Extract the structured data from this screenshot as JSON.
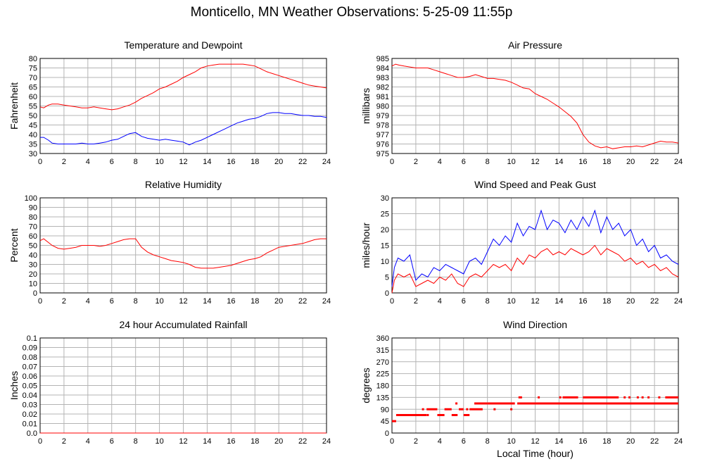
{
  "page": {
    "title": "Monticello, MN Weather Observations: 5-25-09 11:55p"
  },
  "chart_data": [
    {
      "type": "line",
      "title": "Temperature and Dewpoint",
      "ylabel": "Fahrenheit",
      "xlabel": "",
      "xlim": [
        0,
        24
      ],
      "ylim": [
        30,
        80
      ],
      "xticks": [
        0,
        2,
        4,
        6,
        8,
        10,
        12,
        14,
        16,
        18,
        20,
        22,
        24
      ],
      "yticks": [
        30,
        35,
        40,
        45,
        50,
        55,
        60,
        65,
        70,
        75,
        80
      ],
      "grid": true,
      "colors": [
        "#ff0000",
        "#0000ff"
      ],
      "series": [
        {
          "x": [
            0,
            0.3,
            0.7,
            1,
            1.5,
            2,
            2.5,
            3,
            3.5,
            4,
            4.5,
            5,
            5.5,
            6,
            6.5,
            7,
            7.5,
            8,
            8.5,
            9,
            9.5,
            10,
            10.5,
            11,
            11.5,
            12,
            12.5,
            13,
            13.5,
            14,
            14.5,
            15,
            15.5,
            16,
            16.5,
            17,
            17.5,
            18,
            18.5,
            19,
            19.5,
            20,
            20.5,
            21,
            21.5,
            22,
            22.5,
            23,
            23.5,
            24
          ],
          "values": [
            54.5,
            54,
            55.5,
            56,
            56,
            55.5,
            55,
            54.5,
            54,
            54,
            54.5,
            54,
            53.5,
            53,
            53.5,
            54.5,
            55.5,
            57,
            59,
            60.5,
            62,
            64,
            65,
            66.5,
            68,
            70,
            71.5,
            73,
            75,
            76,
            76.5,
            77,
            77,
            77,
            77,
            77,
            76.5,
            76,
            74.5,
            73,
            72,
            71,
            70,
            69,
            68,
            67,
            66,
            65.5,
            65,
            64.5
          ]
        },
        {
          "x": [
            0,
            0.3,
            0.7,
            1,
            1.5,
            2,
            2.5,
            3,
            3.5,
            4,
            4.5,
            5,
            5.5,
            6,
            6.5,
            7,
            7.5,
            8,
            8.5,
            9,
            9.5,
            10,
            10.5,
            11,
            11.5,
            12,
            12.5,
            13,
            13.5,
            14,
            14.5,
            15,
            15.5,
            16,
            16.5,
            17,
            17.5,
            18,
            18.5,
            19,
            19.5,
            20,
            20.5,
            21,
            21.5,
            22,
            22.5,
            23,
            23.5,
            24
          ],
          "values": [
            38.5,
            38.5,
            37,
            35.5,
            35,
            35,
            35,
            35,
            35.5,
            35,
            35,
            35.5,
            36,
            37,
            37.5,
            39,
            40.5,
            41,
            39,
            38,
            37.5,
            37,
            37.5,
            37,
            36.5,
            36,
            34.5,
            36,
            37,
            38.5,
            40,
            41.5,
            43,
            44.5,
            46,
            47,
            48,
            48.5,
            49.5,
            51,
            51.5,
            51.5,
            51,
            51,
            50.5,
            50,
            50,
            49.5,
            49.5,
            49
          ]
        }
      ]
    },
    {
      "type": "line",
      "title": "Air Pressure",
      "ylabel": "millibars",
      "xlabel": "",
      "xlim": [
        0,
        24
      ],
      "ylim": [
        975,
        985
      ],
      "xticks": [
        0,
        2,
        4,
        6,
        8,
        10,
        12,
        14,
        16,
        18,
        20,
        22,
        24
      ],
      "yticks": [
        975,
        976,
        977,
        978,
        979,
        980,
        981,
        982,
        983,
        984,
        985
      ],
      "grid": true,
      "colors": [
        "#ff0000"
      ],
      "series": [
        {
          "x": [
            0,
            0.3,
            0.6,
            1,
            1.5,
            2,
            2.5,
            3,
            3.5,
            4,
            4.5,
            5,
            5.5,
            6,
            6.5,
            7,
            7.5,
            8,
            8.5,
            9,
            9.5,
            10,
            10.5,
            11,
            11.5,
            12,
            12.5,
            13,
            13.5,
            14,
            14.5,
            15,
            15.5,
            16,
            16.5,
            17,
            17.5,
            18,
            18.5,
            19,
            19.5,
            20,
            20.5,
            21,
            21.5,
            22,
            22.5,
            23,
            23.5,
            24
          ],
          "values": [
            984.2,
            984.4,
            984.3,
            984.2,
            984.1,
            984.0,
            984.0,
            984.0,
            983.8,
            983.6,
            983.4,
            983.2,
            983.0,
            983.0,
            983.1,
            983.3,
            983.1,
            982.9,
            982.9,
            982.8,
            982.7,
            982.5,
            982.2,
            981.9,
            981.8,
            981.3,
            981.0,
            980.7,
            980.3,
            979.9,
            979.4,
            978.9,
            978.2,
            977.0,
            976.2,
            975.8,
            975.6,
            975.7,
            975.5,
            975.6,
            975.7,
            975.7,
            975.8,
            975.7,
            975.9,
            976.1,
            976.3,
            976.2,
            976.2,
            976.1
          ]
        }
      ]
    },
    {
      "type": "line",
      "title": "Relative Humidity",
      "ylabel": "Percent",
      "xlabel": "",
      "xlim": [
        0,
        24
      ],
      "ylim": [
        0,
        100
      ],
      "xticks": [
        0,
        2,
        4,
        6,
        8,
        10,
        12,
        14,
        16,
        18,
        20,
        22,
        24
      ],
      "yticks": [
        0,
        10,
        20,
        30,
        40,
        50,
        60,
        70,
        80,
        90,
        100
      ],
      "grid": true,
      "colors": [
        "#ff0000"
      ],
      "series": [
        {
          "x": [
            0,
            0.3,
            0.6,
            1,
            1.5,
            2,
            2.5,
            3,
            3.5,
            4,
            4.5,
            5,
            5.5,
            6,
            6.5,
            7,
            7.5,
            8,
            8.5,
            9,
            9.5,
            10,
            10.5,
            11,
            11.5,
            12,
            12.5,
            13,
            13.5,
            14,
            14.5,
            15,
            15.5,
            16,
            16.5,
            17,
            17.5,
            18,
            18.5,
            19,
            19.5,
            20,
            20.5,
            21,
            21.5,
            22,
            22.5,
            23,
            23.5,
            24
          ],
          "values": [
            55,
            57,
            54,
            50,
            47,
            46,
            47,
            48,
            50,
            50,
            50,
            49,
            50,
            52,
            54,
            56,
            57,
            57,
            48,
            43,
            40,
            38,
            36,
            34,
            33,
            32,
            30,
            27,
            26,
            26,
            26,
            27,
            28,
            29,
            31,
            33,
            35,
            36,
            38,
            42,
            45,
            48,
            49,
            50,
            51,
            52,
            54,
            56,
            57,
            57
          ]
        }
      ]
    },
    {
      "type": "line",
      "title": "Wind Speed and Peak Gust",
      "ylabel": "miles/hour",
      "xlabel": "",
      "xlim": [
        0,
        24
      ],
      "ylim": [
        0,
        30
      ],
      "xticks": [
        0,
        2,
        4,
        6,
        8,
        10,
        12,
        14,
        16,
        18,
        20,
        22,
        24
      ],
      "yticks": [
        0,
        5,
        10,
        15,
        20,
        25,
        30
      ],
      "grid": true,
      "colors": [
        "#ff0000",
        "#0000ff"
      ],
      "series": [
        {
          "x": [
            0,
            0.2,
            0.5,
            1,
            1.5,
            2,
            2.5,
            3,
            3.5,
            4,
            4.5,
            5,
            5.5,
            6,
            6.5,
            7,
            7.5,
            8,
            8.5,
            9,
            9.5,
            10,
            10.5,
            11,
            11.5,
            12,
            12.5,
            13,
            13.5,
            14,
            14.5,
            15,
            15.5,
            16,
            16.5,
            17,
            17.5,
            18,
            18.5,
            19,
            19.5,
            20,
            20.5,
            21,
            21.5,
            22,
            22.5,
            23,
            23.5,
            24
          ],
          "values": [
            0,
            4,
            6,
            5,
            6,
            2,
            3,
            4,
            3,
            5,
            4,
            6,
            3,
            2,
            5,
            6,
            5,
            7,
            9,
            8,
            9,
            7,
            11,
            9,
            12,
            11,
            13,
            14,
            12,
            13,
            12,
            14,
            13,
            12,
            13,
            15,
            12,
            14,
            13,
            12,
            10,
            11,
            9,
            10,
            8,
            9,
            7,
            8,
            6,
            5
          ]
        },
        {
          "x": [
            0,
            0.2,
            0.5,
            1,
            1.5,
            2,
            2.5,
            3,
            3.5,
            4,
            4.5,
            5,
            5.5,
            6,
            6.5,
            7,
            7.5,
            8,
            8.5,
            9,
            9.5,
            10,
            10.5,
            11,
            11.5,
            12,
            12.5,
            13,
            13.5,
            14,
            14.5,
            15,
            15.5,
            16,
            16.5,
            17,
            17.5,
            18,
            18.5,
            19,
            19.5,
            20,
            20.5,
            21,
            21.5,
            22,
            22.5,
            23,
            23.5,
            24
          ],
          "values": [
            2,
            8,
            11,
            10,
            12,
            4,
            6,
            5,
            8,
            7,
            9,
            8,
            7,
            6,
            10,
            11,
            9,
            13,
            17,
            15,
            18,
            16,
            22,
            18,
            21,
            20,
            26,
            20,
            23,
            22,
            19,
            23,
            20,
            24,
            21,
            26,
            19,
            24,
            20,
            22,
            18,
            20,
            15,
            17,
            13,
            15,
            11,
            12,
            10,
            9
          ]
        }
      ]
    },
    {
      "type": "line",
      "title": "24 hour Accumulated Rainfall",
      "ylabel": "Inches",
      "xlabel": "",
      "xlim": [
        0,
        24
      ],
      "ylim": [
        0,
        0.1
      ],
      "xticks": [
        0,
        2,
        4,
        6,
        8,
        10,
        12,
        14,
        16,
        18,
        20,
        22,
        24
      ],
      "yticks": [
        0,
        0.01,
        0.02,
        0.03,
        0.04,
        0.05,
        0.06,
        0.07,
        0.08,
        0.09,
        0.1
      ],
      "ytick_labels": [
        "0.0",
        "0.01",
        "0.02",
        "0.03",
        "0.04",
        "0.05",
        "0.06",
        "0.07",
        "0.08",
        "0.09",
        "0.1"
      ],
      "grid": true,
      "colors": [
        "#ff0000"
      ],
      "series": [
        {
          "x": [
            0,
            24
          ],
          "values": [
            0,
            0
          ]
        }
      ]
    },
    {
      "type": "scatter",
      "title": "Wind Direction",
      "ylabel": "degrees",
      "xlabel": "Local Time (hour)",
      "xlim": [
        0,
        24
      ],
      "ylim": [
        0,
        360
      ],
      "xticks": [
        0,
        2,
        4,
        6,
        8,
        10,
        12,
        14,
        16,
        18,
        20,
        22,
        24
      ],
      "yticks": [
        0,
        45,
        90,
        135,
        180,
        225,
        270,
        315,
        360
      ],
      "grid": true,
      "colors": [
        "#ff0000"
      ],
      "segments": [
        {
          "x0": 0.0,
          "x1": 0.35,
          "y": 45
        },
        {
          "x0": 0.35,
          "x1": 2.9,
          "y": 68
        },
        {
          "x0": 2.9,
          "x1": 3.8,
          "y": 90
        },
        {
          "x0": 3.8,
          "x1": 4.4,
          "y": 68
        },
        {
          "x0": 4.4,
          "x1": 5.0,
          "y": 90
        },
        {
          "x0": 5.0,
          "x1": 5.5,
          "y": 68
        },
        {
          "x0": 5.6,
          "x1": 6.0,
          "y": 90
        },
        {
          "x0": 6.0,
          "x1": 6.5,
          "y": 68
        },
        {
          "x0": 6.5,
          "x1": 7.6,
          "y": 90
        },
        {
          "x0": 6.9,
          "x1": 8.0,
          "y": 112
        },
        {
          "x0": 8.0,
          "x1": 10.3,
          "y": 112
        },
        {
          "x0": 10.5,
          "x1": 14.3,
          "y": 112
        },
        {
          "x0": 14.3,
          "x1": 24,
          "y": 112
        },
        {
          "x0": 10.6,
          "x1": 10.9,
          "y": 135
        },
        {
          "x0": 14.3,
          "x1": 15.6,
          "y": 135
        },
        {
          "x0": 16.0,
          "x1": 19.0,
          "y": 135
        },
        {
          "x0": 22.9,
          "x1": 24.0,
          "y": 135
        }
      ],
      "points": [
        {
          "x": 2.6,
          "y": 90
        },
        {
          "x": 3.0,
          "y": 68
        },
        {
          "x": 5.4,
          "y": 112
        },
        {
          "x": 6.3,
          "y": 90
        },
        {
          "x": 7.3,
          "y": 112
        },
        {
          "x": 8.6,
          "y": 90
        },
        {
          "x": 10.0,
          "y": 90
        },
        {
          "x": 12.3,
          "y": 135
        },
        {
          "x": 14.1,
          "y": 135
        },
        {
          "x": 14.8,
          "y": 112
        },
        {
          "x": 15.6,
          "y": 112
        },
        {
          "x": 16.6,
          "y": 112
        },
        {
          "x": 17.6,
          "y": 112
        },
        {
          "x": 18.6,
          "y": 112
        },
        {
          "x": 19.5,
          "y": 135
        },
        {
          "x": 19.9,
          "y": 135
        },
        {
          "x": 20.6,
          "y": 135
        },
        {
          "x": 21.0,
          "y": 135
        },
        {
          "x": 21.5,
          "y": 135
        },
        {
          "x": 22.4,
          "y": 135
        },
        {
          "x": 22.8,
          "y": 112
        },
        {
          "x": 23.6,
          "y": 112
        }
      ]
    }
  ]
}
